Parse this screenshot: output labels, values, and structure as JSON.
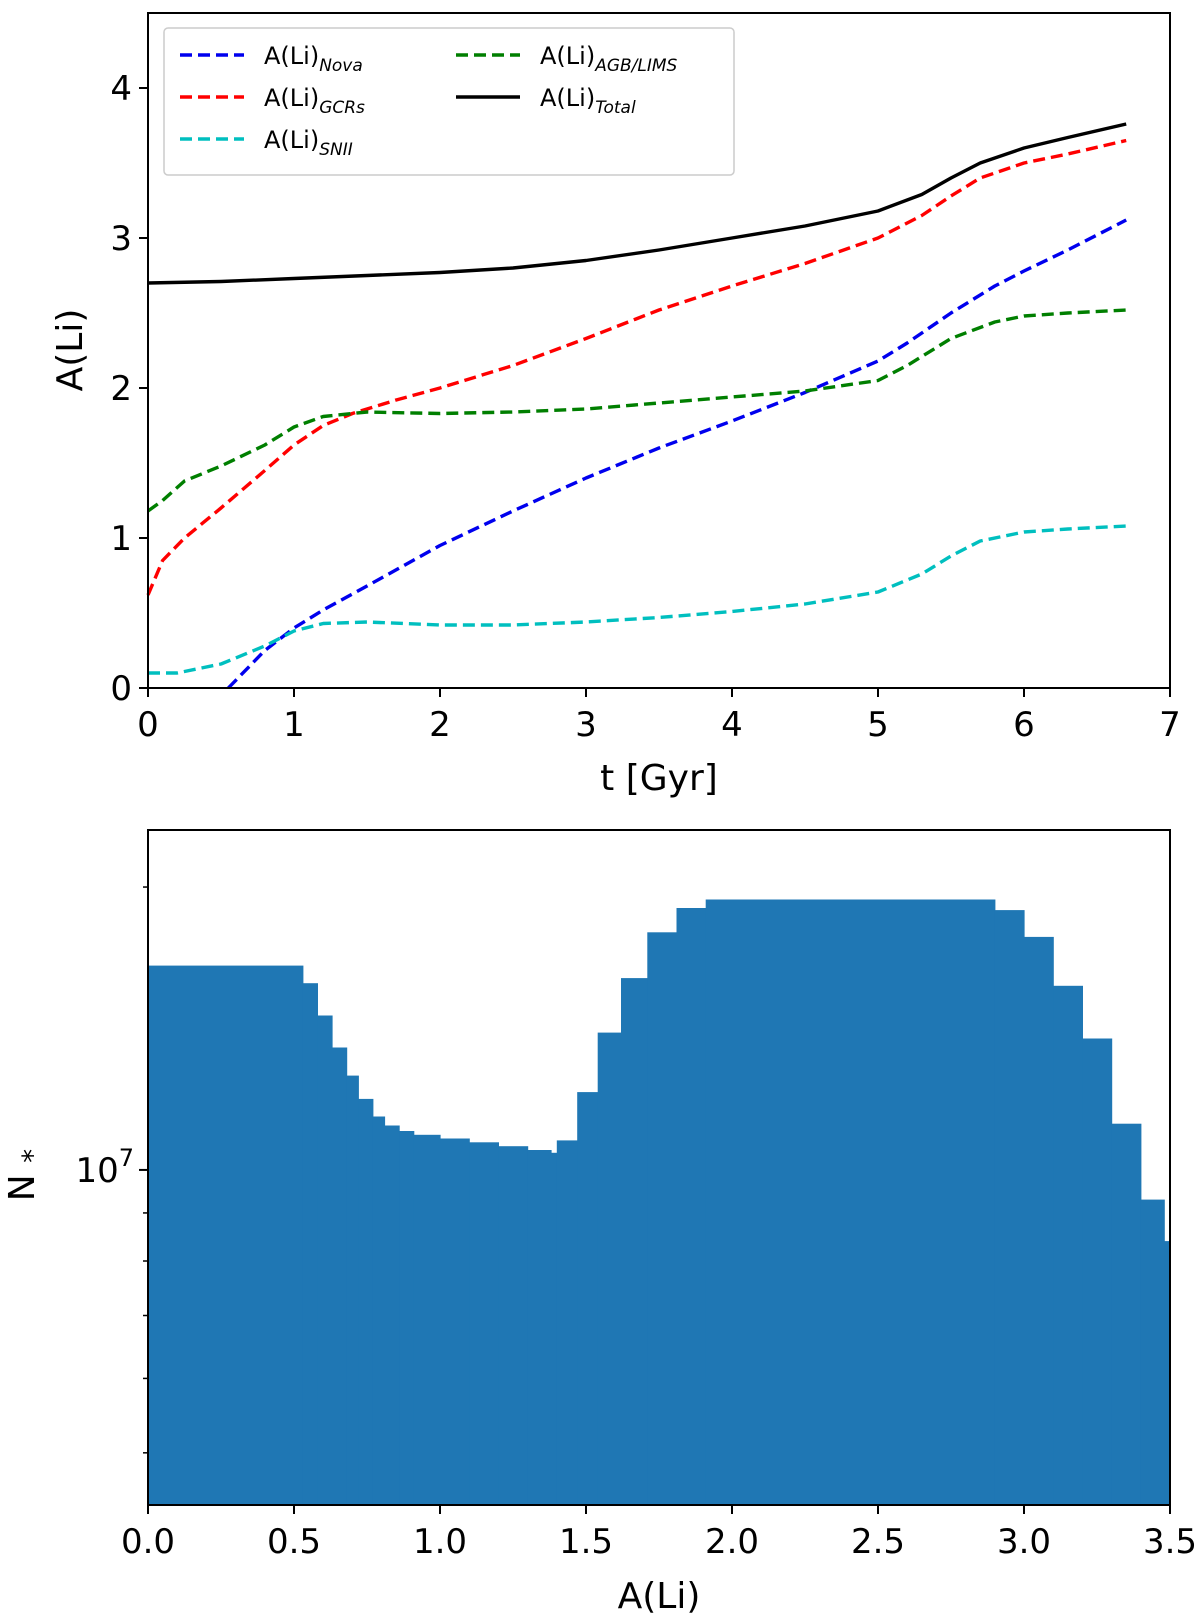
{
  "chart_data": [
    {
      "type": "line",
      "xlabel": "t [Gyr]",
      "ylabel": "A(Li)",
      "xlim": [
        0,
        7
      ],
      "ylim": [
        0,
        4.5
      ],
      "xticks": [
        "0",
        "1",
        "2",
        "3",
        "4",
        "5",
        "6",
        "7"
      ],
      "yticks": [
        "0",
        "1",
        "2",
        "3",
        "4"
      ],
      "grid": false,
      "legend": {
        "placement": "top-left",
        "ncol": 2,
        "entries": [
          {
            "label": "A(Li)",
            "sub": "Nova",
            "series": 0
          },
          {
            "label": "A(Li)",
            "sub": "GCRs",
            "series": 1
          },
          {
            "label": "A(Li)",
            "sub": "SNII",
            "series": 2
          },
          {
            "label": "A(Li)",
            "sub": "AGB/LIMS",
            "series": 3
          },
          {
            "label": "A(Li)",
            "sub": "Total",
            "series": 4
          }
        ]
      },
      "series": [
        {
          "name": "A(Li)Nova",
          "color": "#0000ee",
          "dash": true,
          "x": [
            0.55,
            0.8,
            1.0,
            1.2,
            1.5,
            2.0,
            2.5,
            3.0,
            3.5,
            4.0,
            4.5,
            5.0,
            5.2,
            5.5,
            5.8,
            6.0,
            6.3,
            6.7
          ],
          "y": [
            0.0,
            0.25,
            0.4,
            0.52,
            0.68,
            0.95,
            1.18,
            1.4,
            1.6,
            1.78,
            1.97,
            2.18,
            2.3,
            2.5,
            2.68,
            2.78,
            2.92,
            3.12
          ]
        },
        {
          "name": "A(Li)GCRs",
          "color": "#ff0000",
          "dash": true,
          "x": [
            0.0,
            0.1,
            0.25,
            0.5,
            0.8,
            1.0,
            1.2,
            1.4,
            1.7,
            2.0,
            2.5,
            3.0,
            3.5,
            4.0,
            4.5,
            5.0,
            5.3,
            5.5,
            5.7,
            6.0,
            6.3,
            6.7
          ],
          "y": [
            0.62,
            0.85,
            1.0,
            1.2,
            1.45,
            1.62,
            1.75,
            1.83,
            1.92,
            2.0,
            2.15,
            2.33,
            2.52,
            2.68,
            2.83,
            3.0,
            3.15,
            3.28,
            3.4,
            3.5,
            3.56,
            3.65
          ]
        },
        {
          "name": "A(Li)SNII",
          "color": "#00bfbf",
          "dash": true,
          "x": [
            0.0,
            0.2,
            0.5,
            0.8,
            1.0,
            1.2,
            1.5,
            2.0,
            2.5,
            3.0,
            3.5,
            4.0,
            4.5,
            5.0,
            5.3,
            5.5,
            5.7,
            6.0,
            6.3,
            6.7
          ],
          "y": [
            0.1,
            0.1,
            0.16,
            0.28,
            0.38,
            0.43,
            0.44,
            0.42,
            0.42,
            0.44,
            0.47,
            0.51,
            0.56,
            0.64,
            0.76,
            0.88,
            0.98,
            1.04,
            1.06,
            1.08
          ]
        },
        {
          "name": "A(Li)AGB/LIMS",
          "color": "#007f00",
          "dash": true,
          "x": [
            0.0,
            0.1,
            0.25,
            0.5,
            0.8,
            1.0,
            1.2,
            1.5,
            2.0,
            2.5,
            3.0,
            3.5,
            4.0,
            4.5,
            5.0,
            5.2,
            5.5,
            5.8,
            6.0,
            6.3,
            6.7
          ],
          "y": [
            1.18,
            1.25,
            1.38,
            1.48,
            1.62,
            1.74,
            1.81,
            1.84,
            1.83,
            1.84,
            1.86,
            1.9,
            1.94,
            1.98,
            2.05,
            2.15,
            2.33,
            2.44,
            2.48,
            2.5,
            2.52
          ]
        },
        {
          "name": "A(Li)Total",
          "color": "#000000",
          "dash": false,
          "x": [
            0.0,
            0.5,
            1.0,
            1.5,
            2.0,
            2.5,
            3.0,
            3.5,
            4.0,
            4.5,
            5.0,
            5.3,
            5.5,
            5.7,
            6.0,
            6.3,
            6.7
          ],
          "y": [
            2.7,
            2.71,
            2.73,
            2.75,
            2.77,
            2.8,
            2.85,
            2.92,
            3.0,
            3.08,
            3.18,
            3.29,
            3.4,
            3.5,
            3.6,
            3.67,
            3.76
          ]
        }
      ]
    },
    {
      "type": "histogram",
      "xlabel": "A(Li)",
      "ylabel": "N*",
      "yscale": "log",
      "xlim": [
        0,
        3.5
      ],
      "ylim": [
        4400000,
        23000000
      ],
      "xticks": [
        "0.0",
        "0.5",
        "1.0",
        "1.5",
        "2.0",
        "2.5",
        "3.0",
        "3.5"
      ],
      "yticks_major": [
        {
          "value": 10000000,
          "base": "10",
          "exp": "7"
        }
      ],
      "yticks_minor": [
        5000000,
        6000000,
        7000000,
        8000000,
        9000000,
        20000000
      ],
      "grid": false,
      "color": "#1f77b4",
      "bins": [
        {
          "x0": 0.0,
          "x1": 0.53,
          "value": 16500000
        },
        {
          "x0": 0.53,
          "x1": 0.58,
          "value": 15800000
        },
        {
          "x0": 0.58,
          "x1": 0.63,
          "value": 14600000
        },
        {
          "x0": 0.63,
          "x1": 0.68,
          "value": 13500000
        },
        {
          "x0": 0.68,
          "x1": 0.72,
          "value": 12600000
        },
        {
          "x0": 0.72,
          "x1": 0.77,
          "value": 11900000
        },
        {
          "x0": 0.77,
          "x1": 0.81,
          "value": 11400000
        },
        {
          "x0": 0.81,
          "x1": 0.86,
          "value": 11150000
        },
        {
          "x0": 0.86,
          "x1": 0.91,
          "value": 11000000
        },
        {
          "x0": 0.91,
          "x1": 1.0,
          "value": 10900000
        },
        {
          "x0": 1.0,
          "x1": 1.1,
          "value": 10800000
        },
        {
          "x0": 1.1,
          "x1": 1.2,
          "value": 10700000
        },
        {
          "x0": 1.2,
          "x1": 1.3,
          "value": 10600000
        },
        {
          "x0": 1.3,
          "x1": 1.38,
          "value": 10500000
        },
        {
          "x0": 1.38,
          "x1": 1.4,
          "value": 10430000
        },
        {
          "x0": 1.4,
          "x1": 1.47,
          "value": 10750000
        },
        {
          "x0": 1.47,
          "x1": 1.54,
          "value": 12100000
        },
        {
          "x0": 1.54,
          "x1": 1.62,
          "value": 14000000
        },
        {
          "x0": 1.62,
          "x1": 1.71,
          "value": 16000000
        },
        {
          "x0": 1.71,
          "x1": 1.81,
          "value": 17900000
        },
        {
          "x0": 1.81,
          "x1": 1.91,
          "value": 19000000
        },
        {
          "x0": 1.91,
          "x1": 2.9,
          "value": 19400000
        },
        {
          "x0": 2.9,
          "x1": 3.0,
          "value": 18900000
        },
        {
          "x0": 3.0,
          "x1": 3.1,
          "value": 17700000
        },
        {
          "x0": 3.1,
          "x1": 3.2,
          "value": 15700000
        },
        {
          "x0": 3.2,
          "x1": 3.3,
          "value": 13800000
        },
        {
          "x0": 3.3,
          "x1": 3.4,
          "value": 11200000
        },
        {
          "x0": 3.4,
          "x1": 3.48,
          "value": 9300000
        },
        {
          "x0": 3.48,
          "x1": 3.5,
          "value": 8400000
        }
      ]
    }
  ]
}
